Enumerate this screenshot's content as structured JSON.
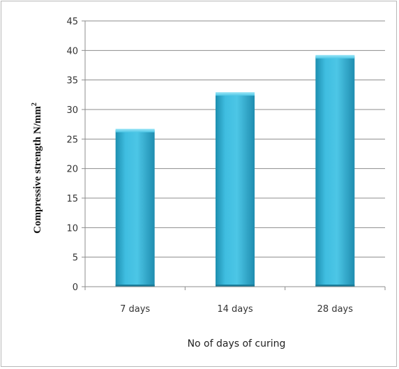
{
  "chart_data": {
    "type": "bar",
    "title": "",
    "categories": [
      "7 days",
      "14 days",
      "28 days"
    ],
    "values": [
      26.5,
      32.7,
      39.0
    ],
    "xlabel": "No of days  of curing",
    "ylabel": "Compressive strength N/mm",
    "ylabel_superscript": "2",
    "ylim": [
      0,
      45
    ],
    "yticks": [
      0,
      5,
      10,
      15,
      20,
      25,
      30,
      35,
      40,
      45
    ],
    "grid": true,
    "legend": "none",
    "bar_color": "#35b3d6"
  }
}
